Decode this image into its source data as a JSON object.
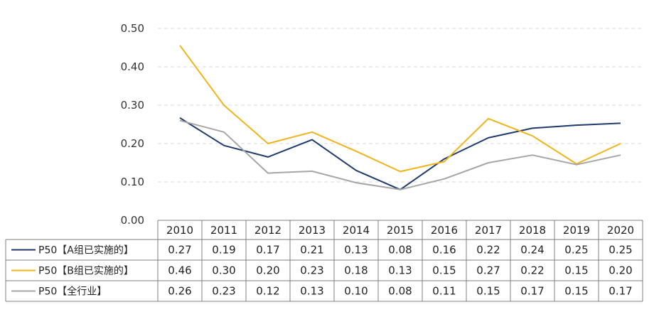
{
  "chart_data": {
    "type": "line",
    "title": "",
    "xlabel": "",
    "ylabel": "",
    "ylim": [
      0,
      0.5
    ],
    "yticks": [
      "0.00",
      "0.10",
      "0.20",
      "0.30",
      "0.40",
      "0.50"
    ],
    "grid": true,
    "categories": [
      "2010",
      "2011",
      "2012",
      "2013",
      "2014",
      "2015",
      "2016",
      "2017",
      "2018",
      "2019",
      "2020"
    ],
    "series": [
      {
        "name": "P50【A组已实施的】",
        "color": "#1f3a6e",
        "values": [
          0.267,
          0.195,
          0.165,
          0.21,
          0.13,
          0.08,
          0.16,
          0.215,
          0.24,
          0.248,
          0.253
        ],
        "labels": [
          "0.27",
          "0.19",
          "0.17",
          "0.21",
          "0.13",
          "0.08",
          "0.16",
          "0.22",
          "0.24",
          "0.25",
          "0.25"
        ]
      },
      {
        "name": "P50【B组已实施的】",
        "color": "#f0b41c",
        "values": [
          0.456,
          0.3,
          0.2,
          0.23,
          0.18,
          0.127,
          0.153,
          0.265,
          0.22,
          0.147,
          0.2
        ],
        "labels": [
          "0.46",
          "0.30",
          "0.20",
          "0.23",
          "0.18",
          "0.13",
          "0.15",
          "0.27",
          "0.22",
          "0.15",
          "0.20"
        ]
      },
      {
        "name": "P50【全行业】",
        "color": "#a6a6a6",
        "values": [
          0.26,
          0.23,
          0.123,
          0.128,
          0.098,
          0.08,
          0.108,
          0.15,
          0.17,
          0.145,
          0.17
        ],
        "labels": [
          "0.26",
          "0.23",
          "0.12",
          "0.13",
          "0.10",
          "0.08",
          "0.11",
          "0.15",
          "0.17",
          "0.15",
          "0.17"
        ]
      }
    ],
    "legend": "table-left"
  }
}
